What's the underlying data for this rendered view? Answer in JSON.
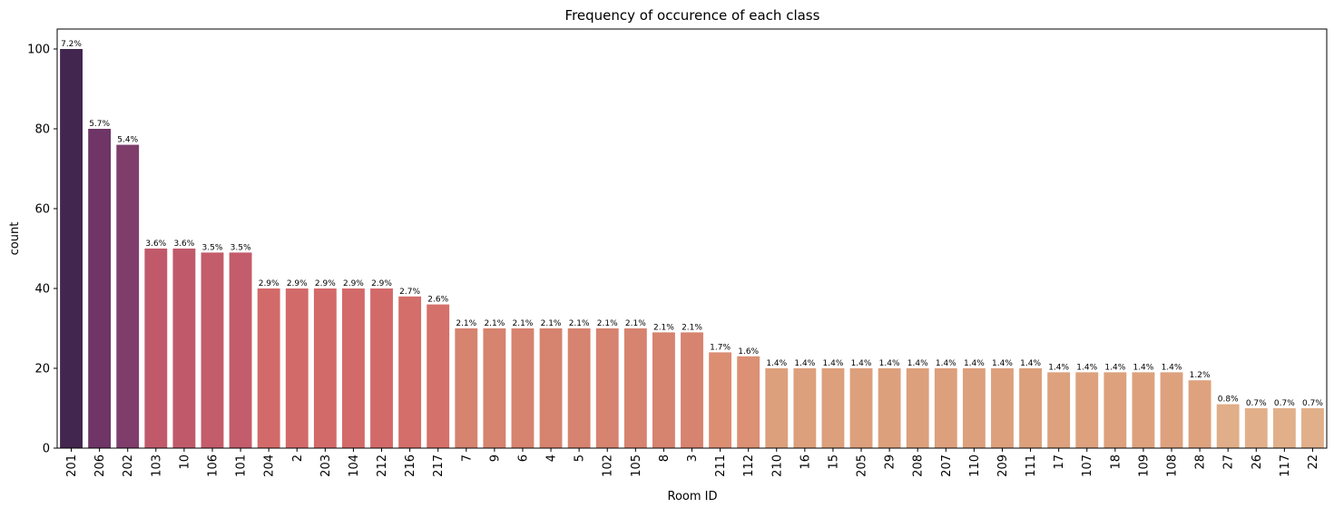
{
  "chart_data": {
    "type": "bar",
    "title": "Frequency of occurence of each class",
    "xlabel": "Room ID",
    "ylabel": "count",
    "ylim": [
      0,
      105
    ],
    "yticks": [
      "0",
      "20",
      "40",
      "60",
      "80",
      "100"
    ],
    "categories": [
      "201",
      "206",
      "202",
      "103",
      "10",
      "106",
      "101",
      "204",
      "2",
      "203",
      "104",
      "212",
      "216",
      "217",
      "7",
      "9",
      "6",
      "4",
      "5",
      "102",
      "105",
      "8",
      "3",
      "211",
      "112",
      "210",
      "16",
      "15",
      "205",
      "29",
      "208",
      "207",
      "110",
      "209",
      "111",
      "17",
      "107",
      "18",
      "109",
      "108",
      "28",
      "27",
      "26",
      "117",
      "22"
    ],
    "values": [
      100,
      80,
      76,
      50,
      50,
      49,
      49,
      40,
      40,
      40,
      40,
      40,
      38,
      36,
      30,
      30,
      30,
      30,
      30,
      30,
      30,
      29,
      29,
      24,
      23,
      20,
      20,
      20,
      20,
      20,
      20,
      20,
      20,
      20,
      20,
      19,
      19,
      19,
      19,
      19,
      17,
      11,
      10,
      10,
      10
    ],
    "labels": [
      "7.2%",
      "5.7%",
      "5.4%",
      "3.6%",
      "3.6%",
      "3.5%",
      "3.5%",
      "2.9%",
      "2.9%",
      "2.9%",
      "2.9%",
      "2.9%",
      "2.7%",
      "2.6%",
      "2.1%",
      "2.1%",
      "2.1%",
      "2.1%",
      "2.1%",
      "2.1%",
      "2.1%",
      "2.1%",
      "2.1%",
      "1.7%",
      "1.6%",
      "1.4%",
      "1.4%",
      "1.4%",
      "1.4%",
      "1.4%",
      "1.4%",
      "1.4%",
      "1.4%",
      "1.4%",
      "1.4%",
      "1.4%",
      "1.4%",
      "1.4%",
      "1.4%",
      "1.4%",
      "1.2%",
      "0.8%",
      "0.7%",
      "0.7%",
      "0.7%"
    ],
    "colors": [
      "#43264f",
      "#6e3566",
      "#7f3d6c",
      "#c05a6b",
      "#c05a6b",
      "#c35c6b",
      "#c35c6b",
      "#d36a6a",
      "#d36a6a",
      "#d36a6a",
      "#d36a6a",
      "#d36a6a",
      "#d36e6a",
      "#d4716a",
      "#d6836f",
      "#d6836f",
      "#d6836f",
      "#d6836f",
      "#d6836f",
      "#d6836f",
      "#d6836f",
      "#d6836f",
      "#d6836f",
      "#dc8e73",
      "#dc9074",
      "#dda07c",
      "#dda07c",
      "#dda07c",
      "#dda07c",
      "#dda07c",
      "#dda07c",
      "#dda07c",
      "#dda07c",
      "#dda07c",
      "#dda07c",
      "#dda17d",
      "#dda17d",
      "#dda17d",
      "#dda17d",
      "#dda17d",
      "#dea27e",
      "#e0ae88",
      "#e1b08a",
      "#e1b08a",
      "#e1b08a"
    ],
    "grid": false,
    "legend": "none"
  }
}
